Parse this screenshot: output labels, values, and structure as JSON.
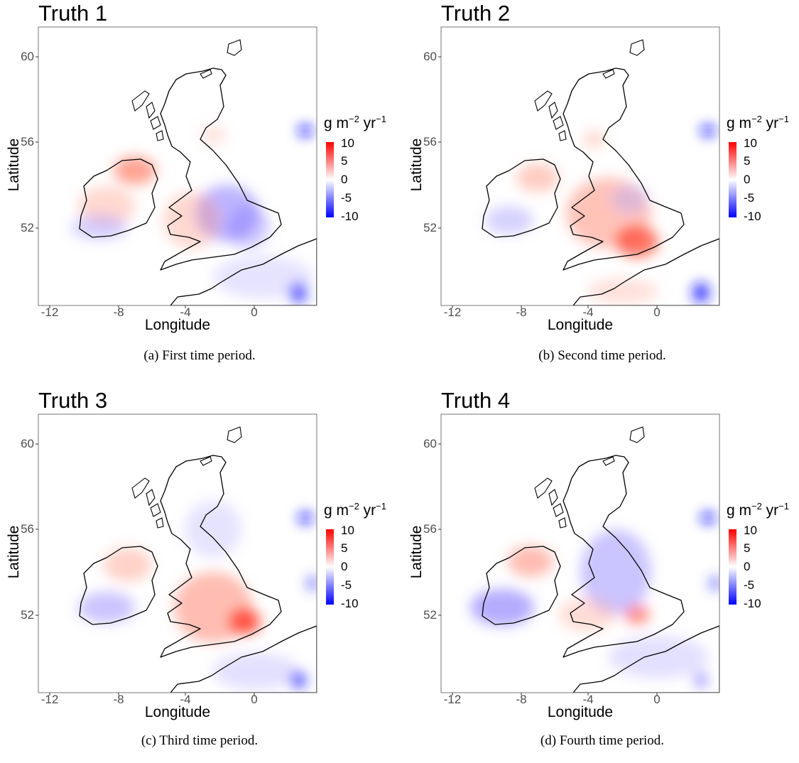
{
  "panels": [
    {
      "title": "Truth 1",
      "caption": "(a) First time period."
    },
    {
      "title": "Truth 2",
      "caption": "(b) Second time period."
    },
    {
      "title": "Truth 3",
      "caption": "(c) Third time period."
    },
    {
      "title": "Truth 4",
      "caption": "(d) Fourth time period."
    }
  ],
  "axes": {
    "xlabel": "Longitude",
    "ylabel": "Latitude",
    "xticks": [
      "-12",
      "-8",
      "-4",
      "0"
    ],
    "yticks": [
      "60",
      "56",
      "52"
    ]
  },
  "legend": {
    "unit_base": "g m",
    "unit_exp1": "−2",
    "unit_mid": " yr",
    "unit_exp2": "−1",
    "ticks": [
      "10",
      "5",
      "0",
      "-5",
      "-10"
    ],
    "colors": {
      "high": "#ff0000",
      "mid": "#ffffff",
      "low": "#0000ff"
    }
  }
}
